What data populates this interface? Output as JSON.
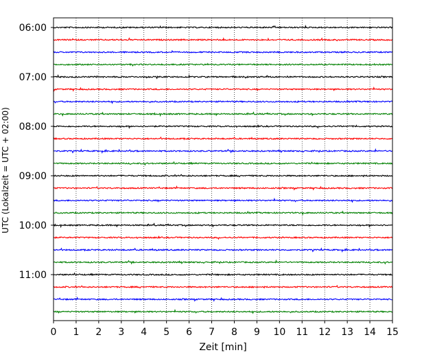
{
  "chart_data": {
    "type": "line",
    "title": "",
    "xlabel": "Zeit  [min]",
    "ylabel": "UTC (Lokalzeit = UTC + 02:00)",
    "xlim": [
      0,
      15
    ],
    "x_ticks": [
      "0",
      "1",
      "2",
      "3",
      "4",
      "5",
      "6",
      "7",
      "8",
      "9",
      "10",
      "11",
      "12",
      "13",
      "14",
      "15"
    ],
    "y_ticks": [
      {
        "label": "06:00",
        "row": 0
      },
      {
        "label": "07:00",
        "row": 4
      },
      {
        "label": "08:00",
        "row": 8
      },
      {
        "label": "09:00",
        "row": 12
      },
      {
        "label": "10:00",
        "row": 16
      },
      {
        "label": "11:00",
        "row": 20
      }
    ],
    "row_interval_min": 15,
    "grid": "vertical dotted at each minute",
    "colors": [
      "#000000",
      "#ff0000",
      "#0000ff",
      "#008000"
    ],
    "series": [
      {
        "start": "06:00",
        "color": "#000000"
      },
      {
        "start": "06:15",
        "color": "#ff0000"
      },
      {
        "start": "06:30",
        "color": "#0000ff"
      },
      {
        "start": "06:45",
        "color": "#008000"
      },
      {
        "start": "07:00",
        "color": "#000000"
      },
      {
        "start": "07:15",
        "color": "#ff0000"
      },
      {
        "start": "07:30",
        "color": "#0000ff"
      },
      {
        "start": "07:45",
        "color": "#008000"
      },
      {
        "start": "08:00",
        "color": "#000000"
      },
      {
        "start": "08:15",
        "color": "#ff0000"
      },
      {
        "start": "08:30",
        "color": "#0000ff"
      },
      {
        "start": "08:45",
        "color": "#008000"
      },
      {
        "start": "09:00",
        "color": "#000000"
      },
      {
        "start": "09:15",
        "color": "#ff0000"
      },
      {
        "start": "09:30",
        "color": "#0000ff"
      },
      {
        "start": "09:45",
        "color": "#008000"
      },
      {
        "start": "10:00",
        "color": "#000000"
      },
      {
        "start": "10:15",
        "color": "#ff0000"
      },
      {
        "start": "10:30",
        "color": "#0000ff"
      },
      {
        "start": "10:45",
        "color": "#008000"
      },
      {
        "start": "11:00",
        "color": "#000000"
      },
      {
        "start": "11:15",
        "color": "#ff0000"
      },
      {
        "start": "11:30",
        "color": "#0000ff"
      },
      {
        "start": "11:45",
        "color": "#008000"
      }
    ]
  }
}
